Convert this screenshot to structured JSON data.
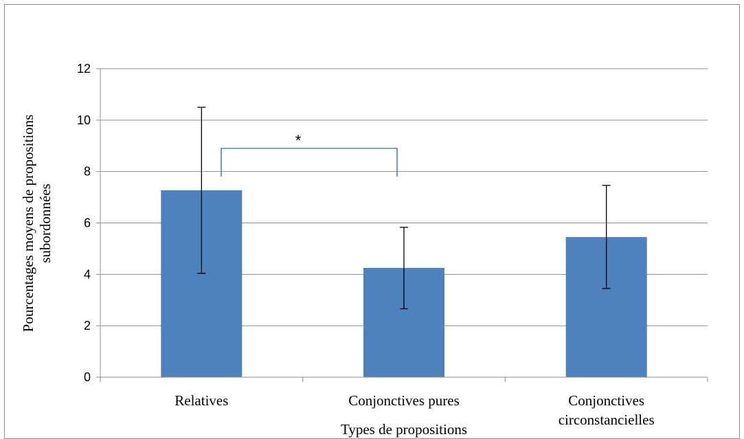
{
  "chart_data": {
    "type": "bar",
    "title": "",
    "categories": [
      [
        "Relatives"
      ],
      [
        "Conjonctives pures"
      ],
      [
        "Conjonctives",
        "circonstancielles"
      ]
    ],
    "series": [
      {
        "values": [
          7.27,
          4.25,
          5.45
        ],
        "error_upper": [
          10.5,
          5.83,
          7.46
        ],
        "error_lower": [
          4.04,
          2.66,
          3.45
        ],
        "color": "#4F81BD"
      }
    ],
    "xlabel": "Types de propositions",
    "ylabel": [
      "Pourcentages moyens  de propositions",
      "subordonnées"
    ],
    "ylim": [
      0,
      12
    ],
    "yticks": [
      0,
      2,
      4,
      6,
      8,
      10,
      12
    ],
    "grid": true,
    "legend": "none",
    "annotations": [
      {
        "label": "*",
        "from_category": 0,
        "to_category": 1,
        "bracket_color": "#4F81BD"
      }
    ]
  }
}
